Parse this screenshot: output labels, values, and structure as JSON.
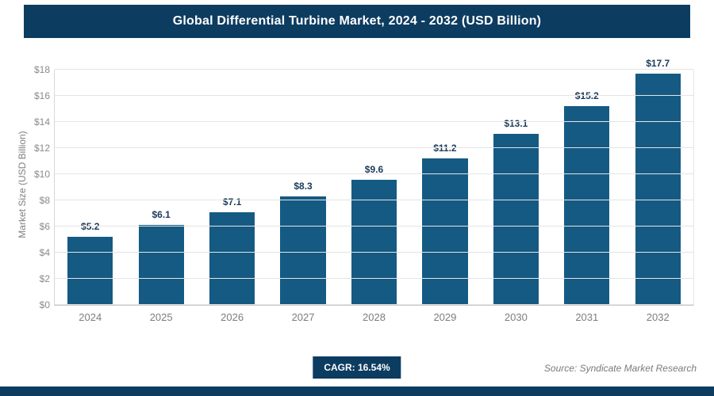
{
  "header": {
    "title": "Global Differential Turbine Market, 2024 - 2032 (USD Billion)"
  },
  "colors": {
    "header_bg": "#0d3c61",
    "bar": "#155a83",
    "gridline": "#e4e4e4",
    "axis_text": "#8a8a8a",
    "value_label_text": "#1b3a5a"
  },
  "footer": {
    "cagr_label": "CAGR: 16.54%",
    "source": "Source: Syndicate Market Research"
  },
  "chart_data": {
    "type": "bar",
    "title": "Global Differential Turbine Market, 2024 - 2032 (USD Billion)",
    "xlabel": "",
    "ylabel": "Market Size (USD Billion)",
    "categories": [
      "2024",
      "2025",
      "2026",
      "2027",
      "2028",
      "2029",
      "2030",
      "2031",
      "2032"
    ],
    "values": [
      5.2,
      6.1,
      7.1,
      8.3,
      9.6,
      11.2,
      13.1,
      15.2,
      17.7
    ],
    "bar_labels": [
      "$5.2",
      "$6.1",
      "$7.1",
      "$8.3",
      "$9.6",
      "$11.2",
      "$13.1",
      "$15.2",
      "$17.7"
    ],
    "ylim": [
      0,
      18
    ],
    "ytick_labels": [
      "$0",
      "$2",
      "$4",
      "$6",
      "$8",
      "$10",
      "$12",
      "$14",
      "$16",
      "$18"
    ],
    "grid": true,
    "legend": false
  }
}
